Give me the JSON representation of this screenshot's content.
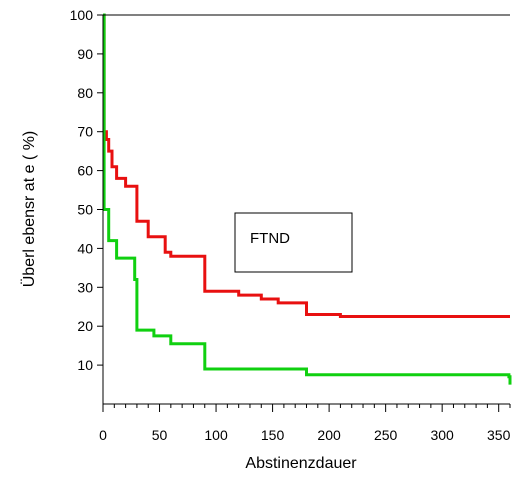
{
  "chart_data": {
    "type": "line",
    "xlabel": "Abstinenzdauer",
    "ylabel": "Überl ebensr at e ( %)",
    "xlim": [
      0,
      360
    ],
    "ylim": [
      0,
      100
    ],
    "x_ticks": [
      0,
      50,
      100,
      150,
      200,
      250,
      300,
      350
    ],
    "y_ticks": [
      10,
      20,
      30,
      40,
      50,
      60,
      70,
      80,
      90,
      100
    ],
    "grid": false,
    "annotation": "FTND",
    "series": [
      {
        "color": "#e81010",
        "step": true,
        "points": [
          [
            0,
            100
          ],
          [
            1,
            70
          ],
          [
            3,
            68
          ],
          [
            5,
            65
          ],
          [
            8,
            61
          ],
          [
            12,
            58
          ],
          [
            20,
            56
          ],
          [
            30,
            47
          ],
          [
            40,
            43
          ],
          [
            55,
            39
          ],
          [
            60,
            38
          ],
          [
            75,
            38
          ],
          [
            90,
            29
          ],
          [
            120,
            28
          ],
          [
            140,
            27
          ],
          [
            155,
            26
          ],
          [
            180,
            23
          ],
          [
            210,
            22.5
          ],
          [
            360,
            22.5
          ]
        ]
      },
      {
        "color": "#10d010",
        "step": true,
        "points": [
          [
            0,
            100
          ],
          [
            1,
            50
          ],
          [
            5,
            42
          ],
          [
            12,
            37.5
          ],
          [
            28,
            32
          ],
          [
            30,
            19
          ],
          [
            45,
            17.5
          ],
          [
            60,
            15.5
          ],
          [
            90,
            9
          ],
          [
            180,
            7.5
          ],
          [
            359,
            7
          ],
          [
            360,
            5
          ]
        ]
      }
    ]
  }
}
